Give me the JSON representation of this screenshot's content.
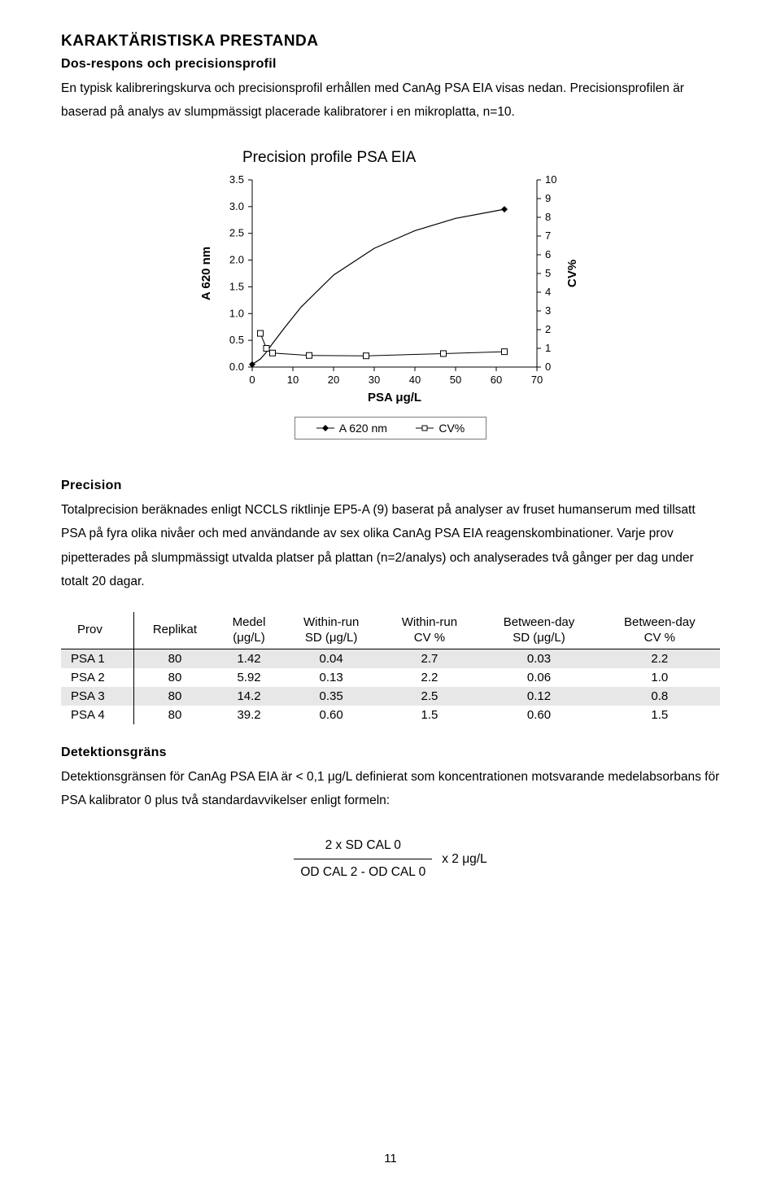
{
  "headings": {
    "h1": "KARAKTÄRISTISKA PRESTANDA",
    "h2_dose": "Dos-respons och precisionsprofil",
    "h2_precision": "Precision",
    "h2_detection": "Detektionsgräns"
  },
  "paragraphs": {
    "p1": "En typisk kalibreringskurva och precisionsprofil erhållen med CanAg PSA EIA visas nedan. Precisionsprofilen är baserad på analys av slumpmässigt placerade kalibratorer i en mikroplatta, n=10.",
    "p2a": "Totalprecision beräknades enligt NCCLS riktlinje EP5-A (9) baserat på analyser av fruset humanserum med tillsatt PSA på fyra olika nivåer och med användande av sex olika CanAg PSA EIA reagenskombinationer. Varje prov pipetterades på slumpmässigt utvalda platser på plattan (n=2/analys) och analyserades två gånger per dag under totalt 20 dagar.",
    "p3": "Detektionsgränsen för CanAg PSA EIA är < 0,1 μg/L definierat som koncentrationen motsvarande medelabsorbans för PSA kalibrator 0 plus två standardavvikelser enligt formeln:"
  },
  "chart": {
    "title": "Precision profile PSA EIA",
    "x_label": "PSA  μg/L",
    "y1_label": "A 620 nm",
    "y2_label": "CV%",
    "x_ticks": [
      0,
      10,
      20,
      30,
      40,
      50,
      60,
      70
    ],
    "y1_ticks": [
      "0.0",
      "0.5",
      "1.0",
      "1.5",
      "2.0",
      "2.5",
      "3.0",
      "3.5"
    ],
    "y2_ticks": [
      0,
      1,
      2,
      3,
      4,
      5,
      6,
      7,
      8,
      9,
      10
    ],
    "series_a620": {
      "type": "line",
      "marker": "diamond",
      "color": "#000000",
      "line_width": 1.2,
      "points": [
        {
          "x": 0,
          "y": 0.05
        },
        {
          "x": 2,
          "y": 0.15
        },
        {
          "x": 3.5,
          "y": 0.28
        },
        {
          "x": 5,
          "y": 0.44
        },
        {
          "x": 8,
          "y": 0.74
        },
        {
          "x": 12,
          "y": 1.12
        },
        {
          "x": 20,
          "y": 1.72
        },
        {
          "x": 30,
          "y": 2.22
        },
        {
          "x": 40,
          "y": 2.55
        },
        {
          "x": 50,
          "y": 2.78
        },
        {
          "x": 62,
          "y": 2.95
        }
      ]
    },
    "series_cv": {
      "type": "line",
      "marker": "square-open",
      "color": "#000000",
      "line_width": 1.0,
      "points": [
        {
          "x": 2,
          "y": 1.8
        },
        {
          "x": 3.5,
          "y": 1.0
        },
        {
          "x": 5,
          "y": 0.75
        },
        {
          "x": 14,
          "y": 0.62
        },
        {
          "x": 28,
          "y": 0.6
        },
        {
          "x": 47,
          "y": 0.72
        },
        {
          "x": 62,
          "y": 0.82
        }
      ]
    },
    "legend": {
      "item1": "A 620 nm",
      "item2": "CV%"
    },
    "background_color": "#ffffff",
    "axis_color": "#000000",
    "tick_fontsize": 13,
    "label_fontsize": 15
  },
  "table": {
    "columns": [
      "Prov",
      "Replikat",
      "Medel (μg/L)",
      "Within-run SD (μg/L)",
      "Within-run CV %",
      "Between-day SD (μg/L)",
      "Between-day CV %"
    ],
    "col_labels": {
      "c0": "Prov",
      "c1": "Replikat",
      "c2a": "Medel",
      "c2b": "(μg/L)",
      "c3a": "Within-run",
      "c3b": "SD (μg/L)",
      "c4a": "Within-run",
      "c4b": "CV %",
      "c5a": "Between-day",
      "c5b": "SD (μg/L)",
      "c6a": "Between-day",
      "c6b": "CV %"
    },
    "rows": [
      {
        "label": "PSA 1",
        "rep": "80",
        "mean": "1.42",
        "wr_sd": "0.04",
        "wr_cv": "2.7",
        "bd_sd": "0.03",
        "bd_cv": "2.2",
        "shade": true
      },
      {
        "label": "PSA 2",
        "rep": "80",
        "mean": "5.92",
        "wr_sd": "0.13",
        "wr_cv": "2.2",
        "bd_sd": "0.06",
        "bd_cv": "1.0",
        "shade": false
      },
      {
        "label": "PSA 3",
        "rep": "80",
        "mean": "14.2",
        "wr_sd": "0.35",
        "wr_cv": "2.5",
        "bd_sd": "0.12",
        "bd_cv": "0.8",
        "shade": true
      },
      {
        "label": "PSA 4",
        "rep": "80",
        "mean": "39.2",
        "wr_sd": "0.60",
        "wr_cv": "1.5",
        "bd_sd": "0.60",
        "bd_cv": "1.5",
        "shade": false
      }
    ],
    "header_border_color": "#000000",
    "shade_color": "#e7e7e7"
  },
  "formula": {
    "numerator": "2 x SD CAL 0",
    "denominator": "OD CAL 2 - OD CAL 0",
    "suffix": "x 2 μg/L"
  },
  "page_number": "11"
}
